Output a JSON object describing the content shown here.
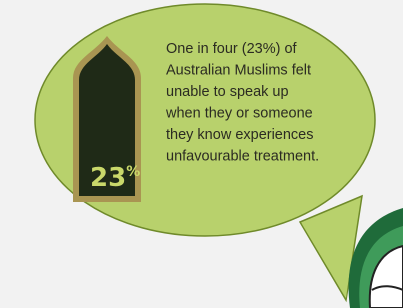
{
  "stat": {
    "value": "23",
    "unit": "%"
  },
  "text": {
    "lines": [
      "One in four (23%) of",
      "Australian Muslims felt",
      "unable to speak up",
      "when they or someone",
      "they know experiences",
      "unfavourable treatment."
    ]
  }
}
